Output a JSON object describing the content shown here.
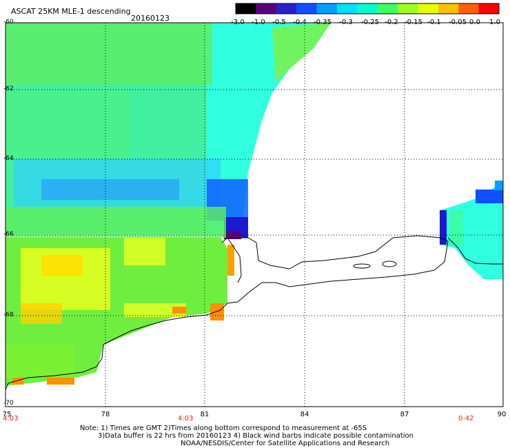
{
  "title": "ASCAT 25KM MLE-1 descending",
  "date": "20160123",
  "colorbar": {
    "labels": [
      "-3.0",
      "-1.0",
      "-0.5",
      "-0.4",
      "-0.35",
      "-0.3",
      "-0.25",
      "-0.2",
      "-0.15",
      "-0.1",
      "-0.05",
      "0.0",
      "1.0"
    ],
    "colors": [
      "#000000",
      "#5a0080",
      "#2a20d0",
      "#1050ff",
      "#00a0ff",
      "#00e0ff",
      "#00ffd0",
      "#40ff60",
      "#a0ff20",
      "#e8ff00",
      "#ffc000",
      "#ff6000",
      "#ff0000"
    ]
  },
  "map": {
    "lat_labels": [
      "-60",
      "-62",
      "-64",
      "-66",
      "-68",
      "-70"
    ],
    "lon_labels": [
      "75",
      "78",
      "81",
      "84",
      "87",
      "90"
    ],
    "time_labels": [
      "4:03",
      "4:03",
      "0:42"
    ]
  },
  "notes": {
    "line1": "Note: 1) Times are GMT 2)Times along bottom correspond to measurement at -65S",
    "line2": "3)Data buffer is 22 hrs from 20160123 4) Black wind barbs indicate possible contamination",
    "line3": "NOAA/NESDIS/Center for Satellite Applications and Research"
  }
}
